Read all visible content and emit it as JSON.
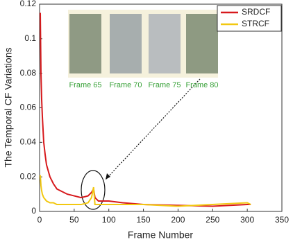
{
  "chart_data": {
    "type": "line",
    "xlabel": "Frame Number",
    "ylabel": "The Temporal CF Variations",
    "x": [
      1,
      2,
      3,
      4,
      6,
      8,
      10,
      15,
      20,
      25,
      30,
      40,
      50,
      60,
      70,
      75,
      78,
      80,
      85,
      100,
      120,
      150,
      200,
      250,
      300,
      305
    ],
    "series": [
      {
        "name": "SRDCF",
        "color": "#d7191c",
        "values": [
          0.115,
          0.08,
          0.065,
          0.055,
          0.04,
          0.033,
          0.027,
          0.02,
          0.016,
          0.013,
          0.012,
          0.01,
          0.009,
          0.008,
          0.009,
          0.011,
          0.013,
          0.008,
          0.006,
          0.006,
          0.005,
          0.004,
          0.0035,
          0.003,
          0.004,
          0.004
        ]
      },
      {
        "name": "STRCF",
        "color": "#f2c811",
        "values": [
          0.021,
          0.015,
          0.012,
          0.01,
          0.008,
          0.007,
          0.006,
          0.005,
          0.005,
          0.004,
          0.004,
          0.004,
          0.004,
          0.004,
          0.005,
          0.008,
          0.014,
          0.004,
          0.004,
          0.004,
          0.004,
          0.004,
          0.003,
          0.004,
          0.005,
          0.004
        ]
      }
    ],
    "xlim": [
      0,
      350
    ],
    "xticks": [
      0,
      50,
      100,
      150,
      200,
      250,
      300,
      350
    ],
    "ylim": [
      0,
      0.12
    ],
    "yticks": [
      0,
      0.02,
      0.04,
      0.06,
      0.08,
      0.1,
      0.12
    ],
    "legend": "top-right",
    "inset_labels": [
      "Frame 65",
      "Frame 70",
      "Frame 75",
      "Frame 80"
    ]
  }
}
